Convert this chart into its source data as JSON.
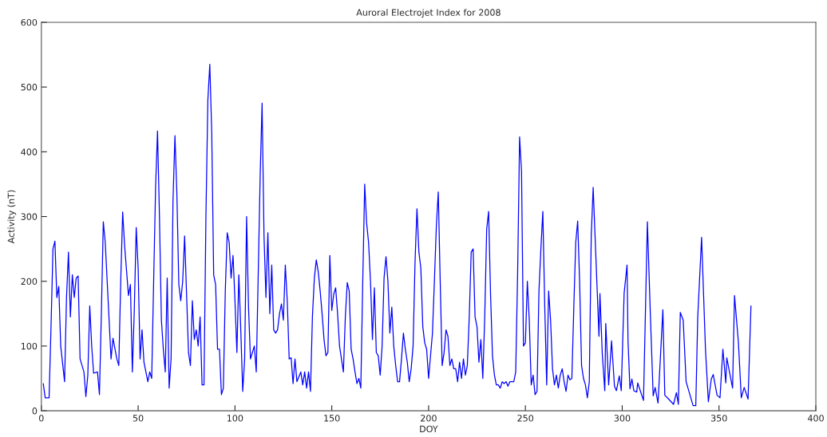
{
  "chart_data": {
    "type": "line",
    "title": "Auroral Electrojet Index for 2008",
    "xlabel": "DOY",
    "ylabel": "Activity (nT)",
    "xlim": [
      0,
      400
    ],
    "ylim": [
      0,
      600
    ],
    "xticks": [
      0,
      50,
      100,
      150,
      200,
      250,
      300,
      350,
      400
    ],
    "yticks": [
      0,
      100,
      200,
      300,
      400,
      500,
      600
    ],
    "grid": false,
    "marker": "none",
    "line_style": "solid",
    "series": [
      {
        "color": "#0000ff",
        "x": [
          1,
          2,
          4,
          5,
          6,
          7,
          8,
          9,
          10,
          12,
          13,
          14,
          15,
          16,
          17,
          18,
          19,
          20,
          22,
          23,
          24,
          25,
          26,
          27,
          29,
          30,
          31,
          32,
          33,
          35,
          36,
          37,
          39,
          40,
          41,
          42,
          43,
          45,
          46,
          47,
          48,
          49,
          50,
          51,
          52,
          53,
          54,
          55,
          56,
          57,
          58,
          59,
          60,
          61,
          62,
          63,
          64,
          65,
          66,
          67,
          68,
          69,
          70,
          71,
          72,
          73,
          74,
          75,
          76,
          77,
          78,
          79,
          80,
          81,
          82,
          83,
          84,
          85,
          86,
          87,
          88,
          89,
          90,
          91,
          92,
          93,
          94,
          95,
          96,
          97,
          98,
          99,
          100,
          101,
          102,
          103,
          104,
          105,
          106,
          107,
          108,
          109,
          110,
          111,
          113,
          114,
          115,
          116,
          117,
          118,
          119,
          120,
          121,
          122,
          123,
          124,
          125,
          126,
          127,
          128,
          129,
          130,
          131,
          132,
          134,
          135,
          136,
          137,
          138,
          139,
          140,
          141,
          142,
          143,
          144,
          145,
          146,
          147,
          148,
          149,
          150,
          151,
          152,
          153,
          154,
          156,
          157,
          158,
          159,
          160,
          161,
          162,
          163,
          164,
          165,
          166,
          167,
          168,
          169,
          170,
          171,
          172,
          173,
          174,
          175,
          176,
          177,
          178,
          179,
          180,
          181,
          182,
          183,
          184,
          185,
          186,
          187,
          188,
          189,
          190,
          191,
          192,
          193,
          194,
          195,
          196,
          197,
          198,
          199,
          200,
          202,
          203,
          204,
          205,
          206,
          207,
          208,
          209,
          210,
          211,
          212,
          213,
          214,
          215,
          216,
          217,
          218,
          219,
          220,
          221,
          222,
          223,
          224,
          225,
          226,
          227,
          228,
          229,
          230,
          231,
          232,
          233,
          234,
          235,
          236,
          237,
          238,
          239,
          240,
          241,
          242,
          244,
          245,
          246,
          247,
          248,
          249,
          250,
          251,
          252,
          253,
          254,
          255,
          256,
          257,
          258,
          259,
          260,
          261,
          262,
          263,
          264,
          265,
          266,
          267,
          268,
          269,
          270,
          271,
          272,
          273,
          274,
          275,
          276,
          277,
          278,
          279,
          280,
          281,
          282,
          283,
          284,
          285,
          288,
          288.5,
          289.7,
          291,
          291.5,
          293,
          294.5,
          296,
          297,
          298.5,
          299.5,
          301,
          302.5,
          303,
          304,
          305,
          306,
          307.5,
          308,
          311,
          313,
          314.5,
          316,
          317,
          318.5,
          321,
          322,
          324,
          326.5,
          328,
          329,
          330,
          331.5,
          333,
          336.6,
          338,
          339,
          341,
          343,
          344.5,
          346,
          347,
          349,
          350.5,
          352,
          353.5,
          354,
          357,
          358,
          360,
          361.5,
          363,
          365,
          366.5
        ],
        "values": [
          42,
          20,
          20,
          130,
          250,
          262,
          175,
          192,
          100,
          45,
          175,
          245,
          145,
          210,
          175,
          205,
          208,
          80,
          60,
          22,
          55,
          162,
          100,
          58,
          60,
          25,
          150,
          292,
          260,
          140,
          80,
          112,
          80,
          70,
          200,
          307,
          255,
          178,
          195,
          60,
          155,
          283,
          220,
          80,
          125,
          75,
          60,
          45,
          60,
          50,
          200,
          345,
          432,
          300,
          140,
          95,
          60,
          205,
          35,
          80,
          325,
          425,
          335,
          195,
          170,
          200,
          270,
          180,
          90,
          70,
          170,
          110,
          125,
          100,
          145,
          40,
          40,
          300,
          480,
          535,
          430,
          210,
          195,
          95,
          95,
          25,
          35,
          185,
          275,
          260,
          205,
          240,
          170,
          90,
          210,
          125,
          30,
          80,
          300,
          160,
          80,
          90,
          100,
          60,
          360,
          475,
          270,
          175,
          275,
          150,
          225,
          125,
          120,
          125,
          150,
          165,
          140,
          225,
          170,
          80,
          82,
          42,
          80,
          45,
          60,
          40,
          60,
          35,
          60,
          30,
          145,
          205,
          233,
          215,
          185,
          150,
          110,
          85,
          90,
          240,
          155,
          180,
          190,
          150,
          100,
          60,
          145,
          198,
          185,
          95,
          80,
          60,
          42,
          50,
          35,
          200,
          350,
          290,
          260,
          200,
          110,
          190,
          90,
          85,
          55,
          100,
          205,
          238,
          200,
          120,
          160,
          100,
          70,
          45,
          45,
          80,
          120,
          95,
          75,
          45,
          65,
          100,
          230,
          312,
          245,
          220,
          130,
          105,
          95,
          50,
          120,
          200,
          285,
          338,
          200,
          70,
          90,
          125,
          115,
          70,
          80,
          65,
          65,
          45,
          75,
          50,
          80,
          55,
          70,
          145,
          245,
          250,
          145,
          130,
          75,
          110,
          50,
          145,
          280,
          308,
          180,
          85,
          55,
          40,
          40,
          35,
          45,
          42,
          45,
          38,
          45,
          45,
          60,
          215,
          423,
          370,
          100,
          105,
          200,
          140,
          40,
          55,
          25,
          30,
          185,
          250,
          308,
          160,
          40,
          185,
          140,
          65,
          40,
          55,
          35,
          55,
          65,
          45,
          30,
          55,
          48,
          50,
          160,
          260,
          293,
          200,
          70,
          50,
          40,
          20,
          45,
          270,
          345,
          115,
          181,
          88,
          31,
          135,
          40,
          108,
          38,
          31,
          54,
          31,
          182,
          225,
          108,
          34,
          49,
          31,
          29,
          43,
          16,
          292,
          152,
          23,
          36,
          12,
          156,
          24,
          18,
          10,
          28,
          10,
          152,
          140,
          45,
          8,
          8,
          144,
          268,
          95,
          14,
          49,
          56,
          24,
          20,
          95,
          43,
          82,
          35,
          178,
          106,
          20,
          36,
          18,
          162
        ]
      }
    ]
  }
}
